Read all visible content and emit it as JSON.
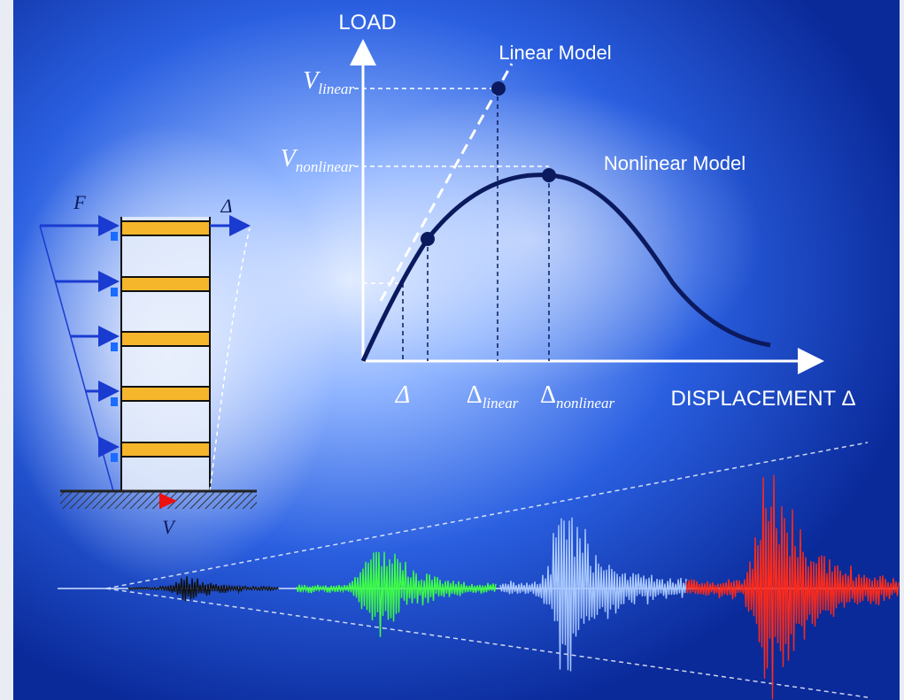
{
  "axes": {
    "y_label": "LOAD",
    "x_label": "DISPLACEMENT Δ"
  },
  "curves": {
    "linear": "Linear Model",
    "nonlinear": "Nonlinear Model"
  },
  "y_labels": [
    {
      "base": "V",
      "sub": "linear"
    },
    {
      "base": "V",
      "sub": "nonlinear"
    }
  ],
  "x_labels": [
    {
      "base": "Δ"
    },
    {
      "base": "Δ",
      "sub": "linear"
    },
    {
      "base": "Δ",
      "sub": "nonlinear"
    }
  ],
  "building": {
    "force": "F",
    "drift": "Δ",
    "shear": "V"
  }
}
